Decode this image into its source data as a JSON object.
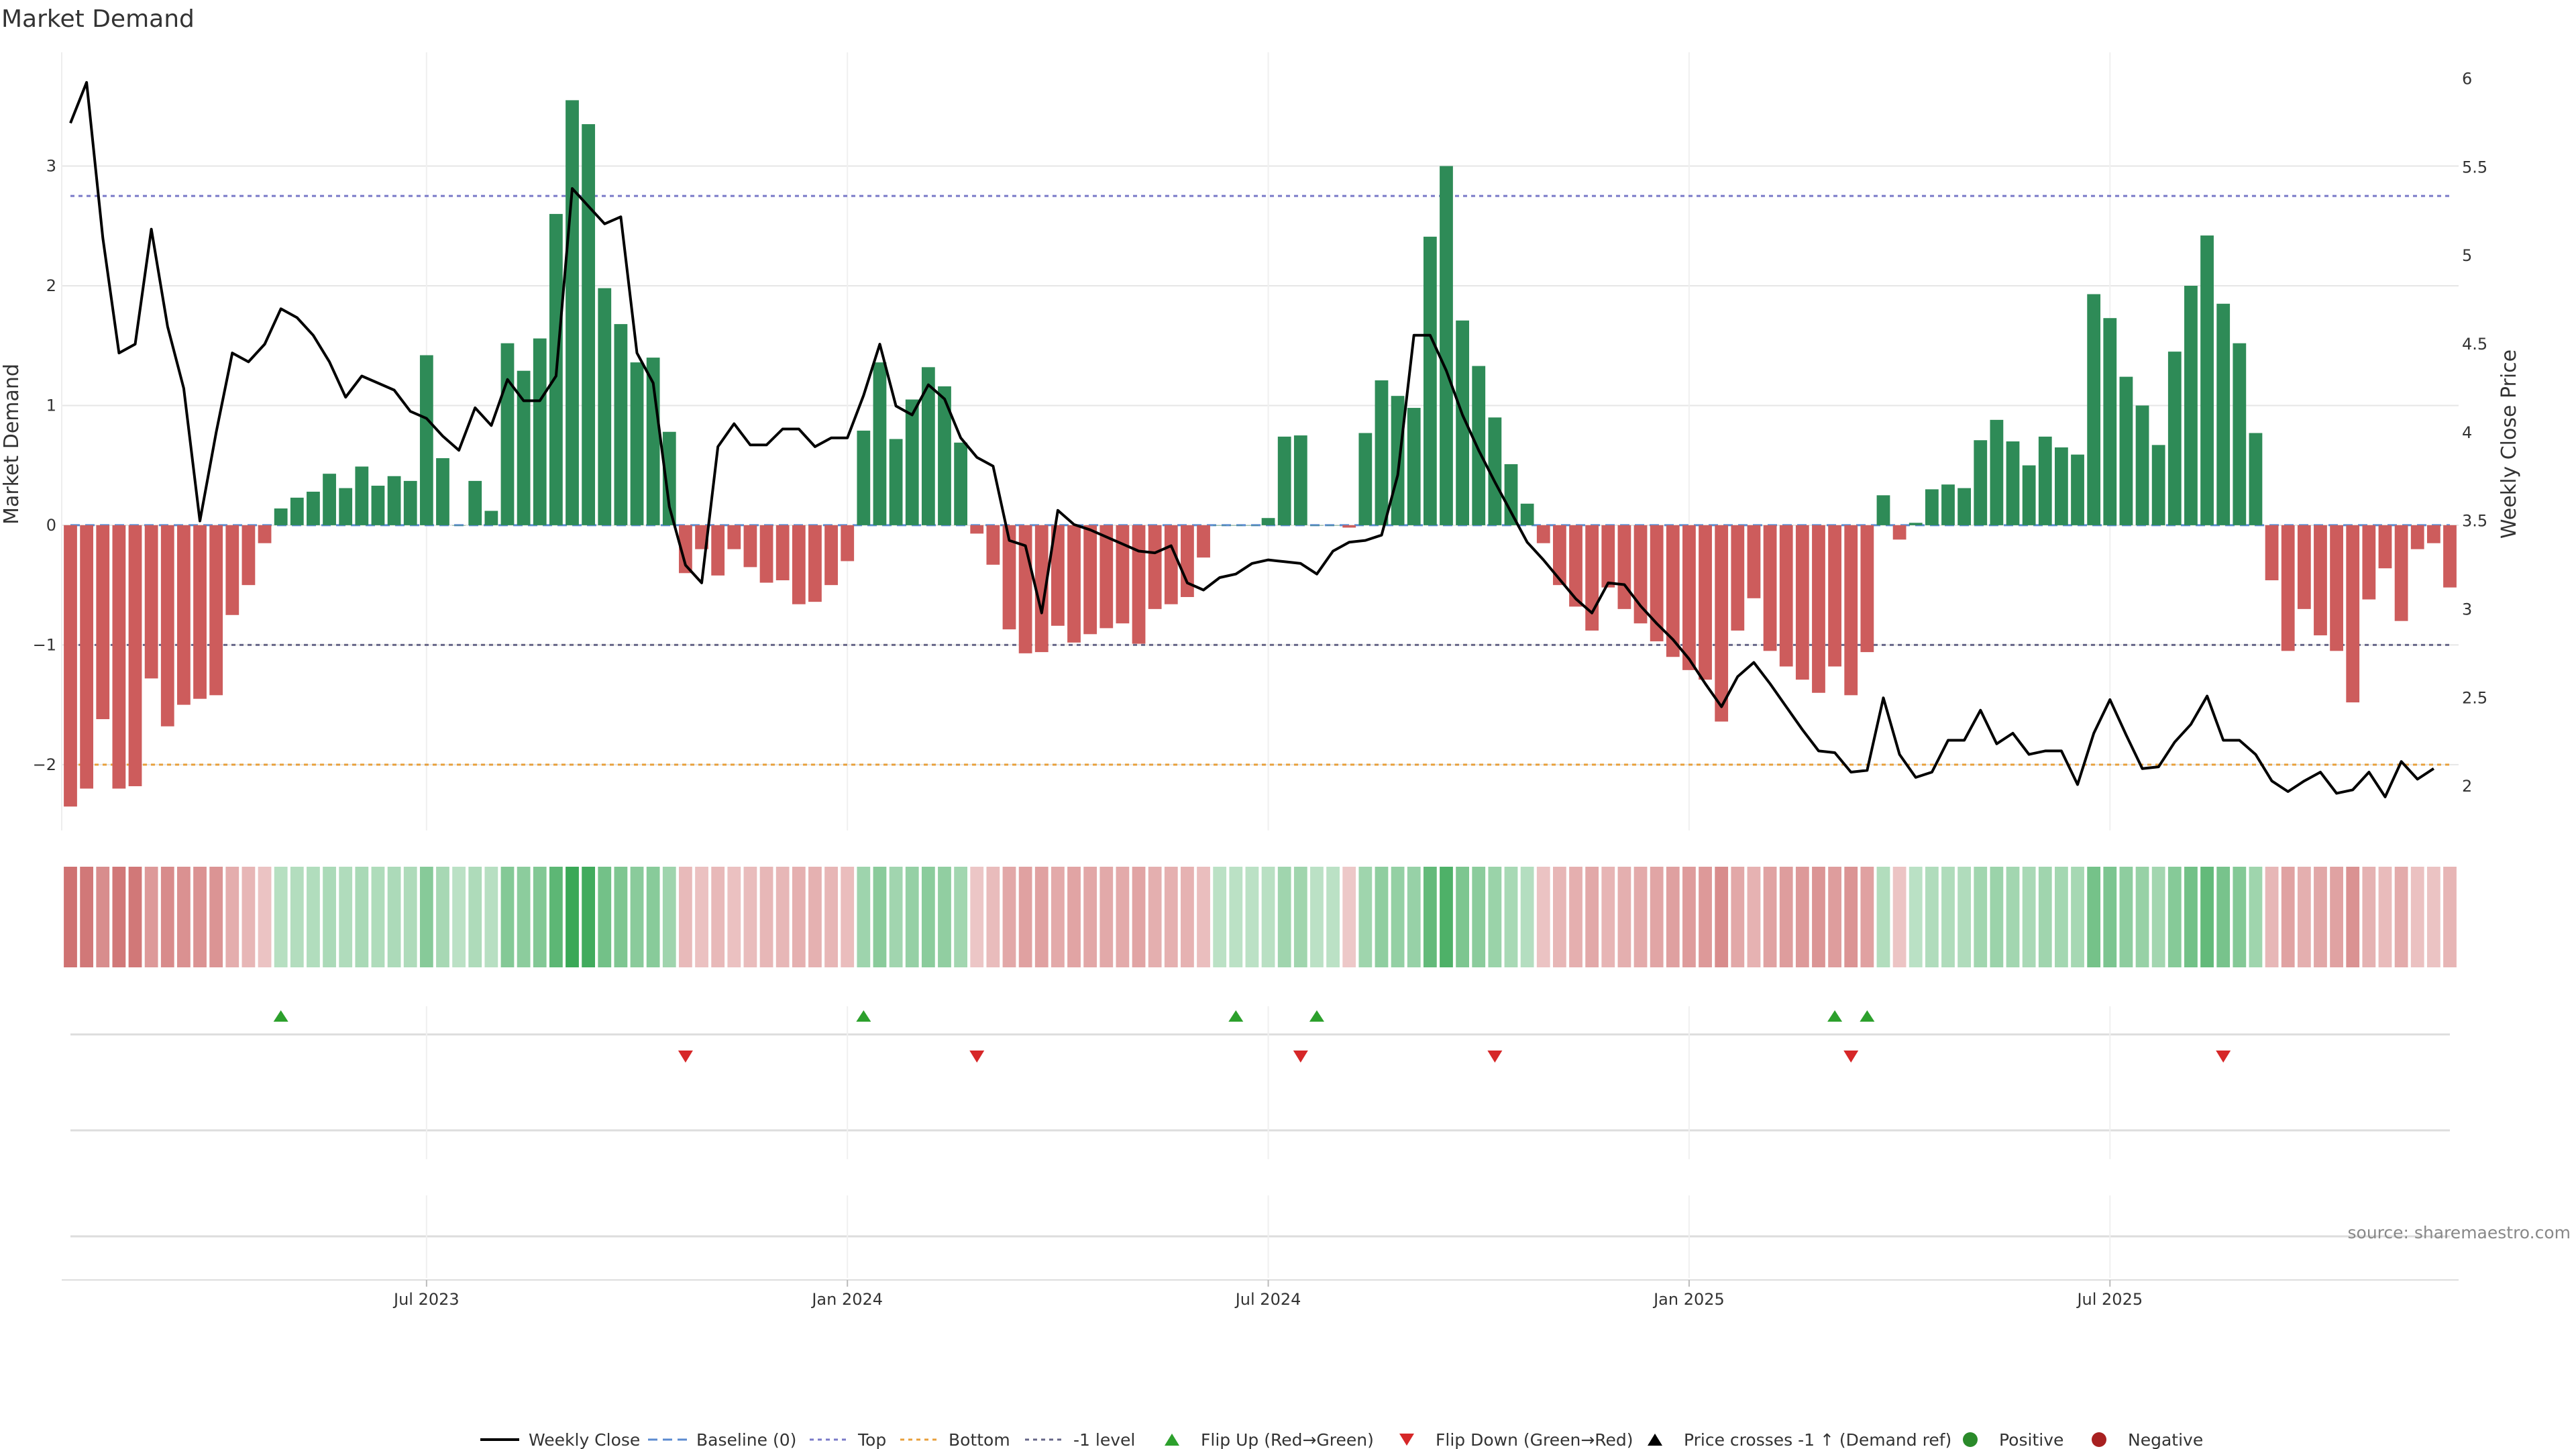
{
  "chart_data": {
    "type": "bar",
    "title": "Market Demand",
    "ylabel_left": "Market Demand",
    "ylabel_right": "Weekly Close Price",
    "source": "source: sharemaestro.com",
    "ylim_left": [
      -2.55,
      3.95
    ],
    "ylim_right": [
      1.75,
      6.15
    ],
    "y_ticks_left": [
      "3",
      "2",
      "1",
      "0",
      "−1",
      "−2"
    ],
    "y_ticks_right": [
      "6",
      "5.5",
      "5",
      "4.5",
      "4",
      "3.5",
      "3",
      "2.5",
      "2"
    ],
    "x_ticks": [
      "Jul 2023",
      "Jan 2024",
      "Jul 2024",
      "Jan 2025",
      "Jul 2025"
    ],
    "x_tick_weeks": [
      22,
      48,
      74,
      100,
      126
    ],
    "reference_lines": {
      "top": 2.75,
      "bottom": -2.0,
      "minus_one": -1.0,
      "baseline": 0
    },
    "colors": {
      "positive": "#2e8b57",
      "negative": "#cd5c5c",
      "price": "#000000",
      "top_line": "#7a7ac8",
      "bottom_line": "#e8a03c",
      "minus_one_line": "#666688",
      "baseline": "#5b8bd0",
      "flip_up": "#2ca02c",
      "flip_down": "#d62728",
      "grid": "#e6e6e6"
    },
    "demand": [
      -2.35,
      -2.2,
      -1.62,
      -2.2,
      -2.18,
      -1.28,
      -1.68,
      -1.5,
      -1.45,
      -1.42,
      -0.75,
      -0.5,
      -0.15,
      0.14,
      0.23,
      0.28,
      0.43,
      0.31,
      0.49,
      0.33,
      0.41,
      0.37,
      1.42,
      0.56,
      0,
      0.37,
      0.12,
      1.52,
      1.29,
      1.56,
      2.6,
      3.55,
      3.35,
      1.98,
      1.68,
      1.36,
      1.4,
      0.78,
      -0.4,
      -0.2,
      -0.42,
      -0.2,
      -0.35,
      -0.48,
      -0.46,
      -0.66,
      -0.64,
      -0.5,
      -0.3,
      0.79,
      1.36,
      0.72,
      1.05,
      1.32,
      1.16,
      0.69,
      -0.07,
      -0.33,
      -0.87,
      -1.07,
      -1.06,
      -0.84,
      -0.98,
      -0.91,
      -0.86,
      -0.82,
      -0.99,
      -0.7,
      -0.66,
      -0.6,
      -0.27,
      0,
      0,
      0,
      0.06,
      0.74,
      0.75,
      0,
      0,
      -0.02,
      0.77,
      1.21,
      1.08,
      0.98,
      2.41,
      3.0,
      1.71,
      1.33,
      0.9,
      0.51,
      0.18,
      -0.15,
      -0.5,
      -0.68,
      -0.88,
      -0.52,
      -0.7,
      -0.82,
      -0.97,
      -1.1,
      -1.21,
      -1.29,
      -1.64,
      -0.88,
      -0.61,
      -1.05,
      -1.18,
      -1.29,
      -1.4,
      -1.18,
      -1.42,
      -1.06,
      0.25,
      -0.12,
      0.02,
      0.3,
      0.34,
      0.31,
      0.71,
      0.88,
      0.7,
      0.5,
      0.74,
      0.65,
      0.59,
      1.93,
      1.73,
      1.24,
      1.0,
      0.67,
      1.45,
      2.0,
      2.42,
      1.85,
      1.52,
      0.77,
      -0.46,
      -1.05,
      -0.7,
      -0.92,
      -1.05,
      -1.48,
      -0.62,
      -0.36,
      -0.8,
      -0.2,
      -0.15,
      -0.52
    ],
    "price": [
      5.75,
      5.98,
      5.1,
      4.45,
      4.5,
      5.15,
      4.6,
      4.25,
      3.5,
      4.0,
      4.45,
      4.4,
      4.5,
      4.7,
      4.65,
      4.55,
      4.4,
      4.2,
      4.32,
      4.28,
      4.24,
      4.12,
      4.08,
      3.98,
      3.9,
      4.14,
      4.04,
      4.3,
      4.18,
      4.18,
      4.32,
      5.38,
      5.28,
      5.18,
      5.22,
      4.45,
      4.28,
      3.58,
      3.25,
      3.15,
      3.92,
      4.05,
      3.93,
      3.93,
      4.02,
      4.02,
      3.92,
      3.97,
      3.97,
      4.21,
      4.5,
      4.15,
      4.1,
      4.27,
      4.19,
      3.97,
      3.86,
      3.81,
      3.39,
      3.36,
      2.98,
      3.56,
      3.48,
      3.45,
      3.41,
      3.37,
      3.33,
      3.32,
      3.36,
      3.15,
      3.11,
      3.18,
      3.2,
      3.26,
      3.28,
      3.27,
      3.26,
      3.2,
      3.33,
      3.38,
      3.39,
      3.42,
      3.76,
      4.55,
      4.55,
      4.35,
      4.1,
      3.9,
      3.72,
      3.55,
      3.38,
      3.28,
      3.17,
      3.06,
      2.98,
      3.15,
      3.14,
      3.02,
      2.92,
      2.83,
      2.72,
      2.58,
      2.45,
      2.62,
      2.7,
      2.58,
      2.45,
      2.32,
      2.2,
      2.19,
      2.08,
      2.09,
      2.5,
      2.18,
      2.05,
      2.08,
      2.26,
      2.26,
      2.43,
      2.24,
      2.3,
      2.18,
      2.2,
      2.2,
      2.01,
      2.3,
      2.49,
      2.29,
      2.1,
      2.11,
      2.25,
      2.35,
      2.51,
      2.26,
      2.26,
      2.18,
      2.03,
      1.97,
      2.03,
      2.08,
      1.96,
      1.98,
      2.08,
      1.94,
      2.14,
      2.04,
      2.1
    ],
    "flip_up_weeks": [
      13,
      49,
      72,
      77,
      109,
      111
    ],
    "flip_down_weeks": [
      38,
      56,
      76,
      88,
      110,
      133
    ],
    "legend": {
      "placement": "bottom-center",
      "entries": [
        {
          "label": "Weekly Close",
          "marker": "line"
        },
        {
          "label": "Baseline (0)",
          "marker": "dash"
        },
        {
          "label": "Top",
          "marker": "dot"
        },
        {
          "label": "Bottom",
          "marker": "dot"
        },
        {
          "label": "-1 level",
          "marker": "dot"
        },
        {
          "label": "Flip Up (Red→Green)",
          "marker": "tri-up"
        },
        {
          "label": "Flip Down (Green→Red)",
          "marker": "tri-down"
        },
        {
          "label": "Price crosses -1 ↑ (Demand ref)",
          "marker": "tri-up-black"
        },
        {
          "label": "Positive",
          "marker": "circle-green"
        },
        {
          "label": "Negative",
          "marker": "circle-red"
        }
      ]
    }
  }
}
